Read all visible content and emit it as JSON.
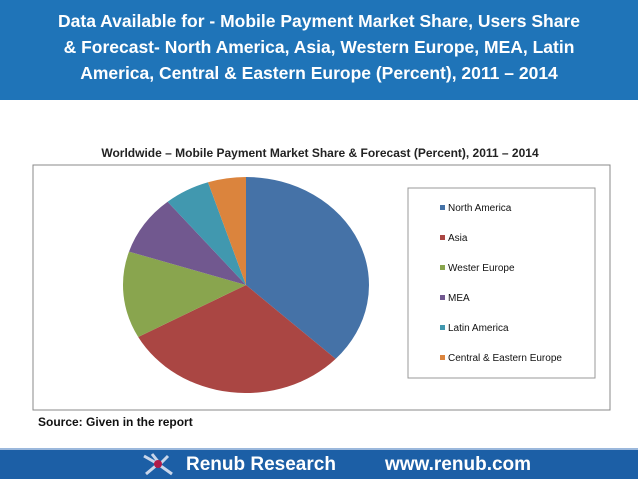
{
  "header": {
    "title_lines": [
      "Data Available for - Mobile Payment Market Share, Users Share",
      "& Forecast- North America, Asia, Western Europe, MEA, Latin",
      "America, Central & Eastern Europe (Percent), 2011 – 2014"
    ]
  },
  "chart_data": {
    "type": "pie",
    "title": "Worldwide – Mobile Payment Market Share & Forecast (Percent), 2011 – 2014",
    "categories": [
      "North America",
      "Asia",
      "Wester Europe",
      "MEA",
      "Latin America",
      "Central & Eastern Europe"
    ],
    "values": [
      37,
      30,
      13,
      9,
      6,
      5
    ],
    "colors": [
      "#4572a7",
      "#aa4643",
      "#89a54e",
      "#71588f",
      "#4198af",
      "#db843d"
    ],
    "legend": "right"
  },
  "source": "Source: Given in the report",
  "footer": {
    "company": "Renub Research",
    "website": "www.renub.com"
  }
}
